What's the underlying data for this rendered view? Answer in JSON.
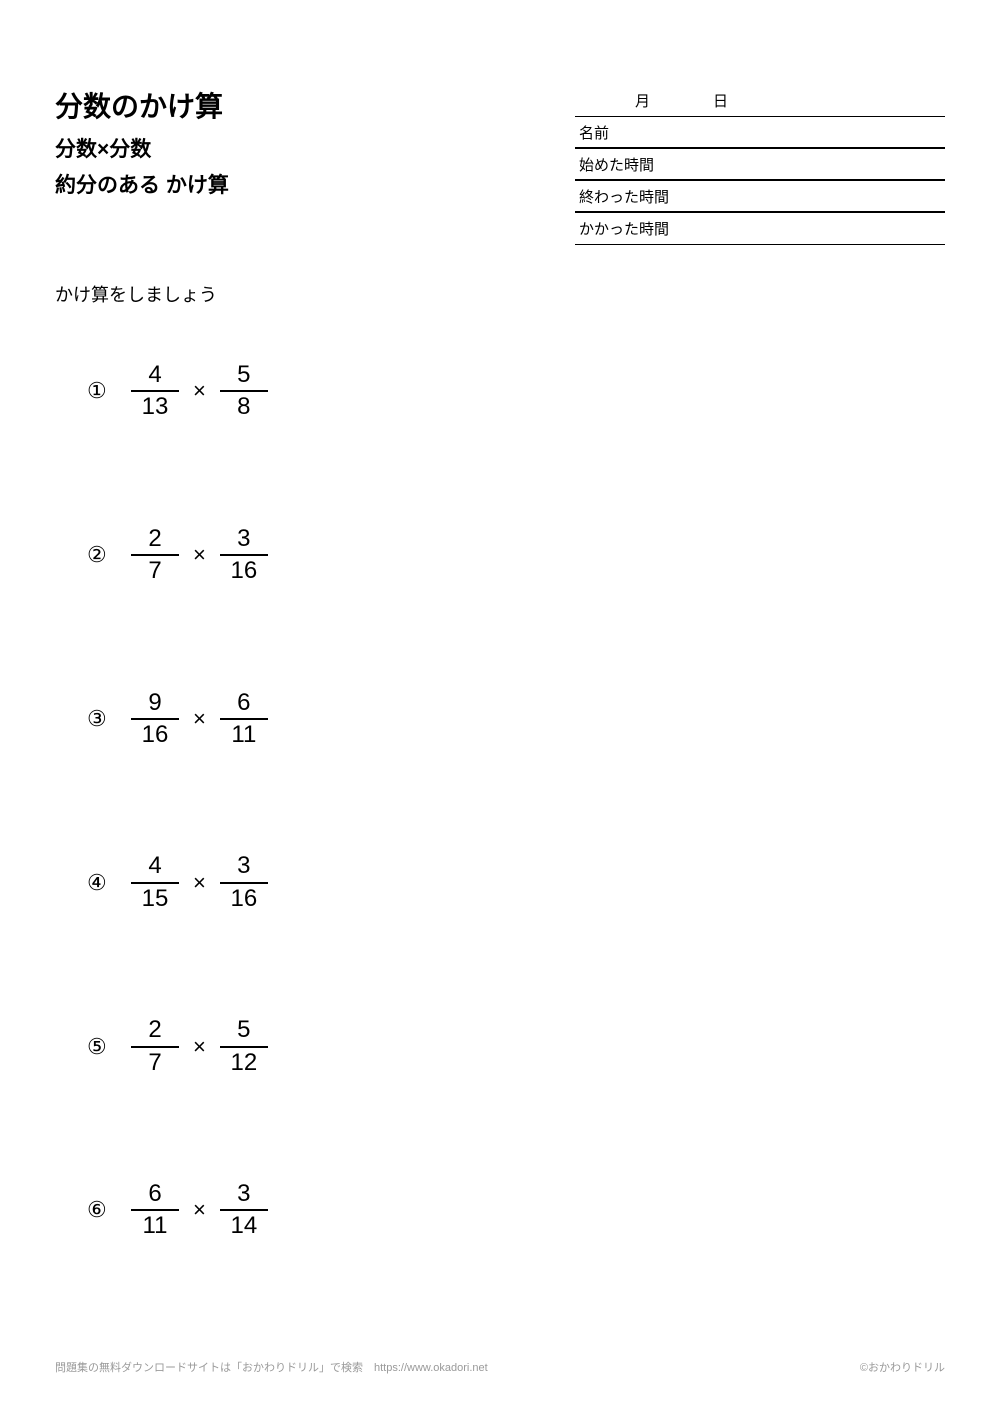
{
  "header": {
    "main_title": "分数のかけ算",
    "sub_title_1": "分数×分数",
    "sub_title_2": "約分のある かけ算",
    "date_label": "月　日",
    "info_rows": [
      {
        "label": "名前",
        "value": ""
      },
      {
        "label": "始めた時間",
        "value": ""
      },
      {
        "label": "終わった時間",
        "value": ""
      },
      {
        "label": "かかった時間",
        "value": ""
      }
    ]
  },
  "instruction": "かけ算をしましょう",
  "operator": "×",
  "problems": [
    {
      "marker": "①",
      "a_num": "4",
      "a_den": "13",
      "b_num": "5",
      "b_den": "8"
    },
    {
      "marker": "②",
      "a_num": "2",
      "a_den": "7",
      "b_num": "3",
      "b_den": "16"
    },
    {
      "marker": "③",
      "a_num": "9",
      "a_den": "16",
      "b_num": "6",
      "b_den": "11"
    },
    {
      "marker": "④",
      "a_num": "4",
      "a_den": "15",
      "b_num": "3",
      "b_den": "16"
    },
    {
      "marker": "⑤",
      "a_num": "2",
      "a_den": "7",
      "b_num": "5",
      "b_den": "12"
    },
    {
      "marker": "⑥",
      "a_num": "6",
      "a_den": "11",
      "b_num": "3",
      "b_den": "14"
    }
  ],
  "footer": {
    "left": "問題集の無料ダウンロードサイトは「おかわりドリル」で検索　https://www.okadori.net",
    "right": "©おかわりドリル"
  },
  "style": {
    "page_bg": "#ffffff",
    "text_color": "#000000",
    "footer_color": "#9a9a9a",
    "title_fontsize": 28,
    "subtitle_fontsize": 21,
    "instruction_fontsize": 18,
    "problem_fontsize": 24,
    "footer_fontsize": 11,
    "fraction_rule_width": 2,
    "info_border_thick": 2,
    "info_border_thin": 1
  }
}
